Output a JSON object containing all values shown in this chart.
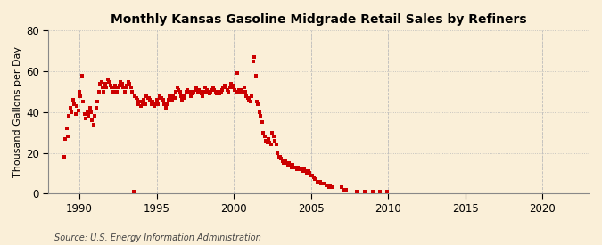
{
  "title": "Monthly Kansas Gasoline Midgrade Retail Sales by Refiners",
  "ylabel": "Thousand Gallons per Day",
  "source": "Source: U.S. Energy Information Administration",
  "background_color": "#faefd8",
  "dot_color": "#cc0000",
  "xlim": [
    1988.0,
    2023.0
  ],
  "ylim": [
    0,
    80
  ],
  "yticks": [
    0,
    20,
    40,
    60,
    80
  ],
  "xticks": [
    1990,
    1995,
    2000,
    2005,
    2010,
    2015,
    2020
  ],
  "data": [
    [
      1989.0,
      18
    ],
    [
      1989.08,
      27
    ],
    [
      1989.17,
      32
    ],
    [
      1989.25,
      28
    ],
    [
      1989.33,
      38
    ],
    [
      1989.42,
      42
    ],
    [
      1989.5,
      40
    ],
    [
      1989.58,
      46
    ],
    [
      1989.67,
      44
    ],
    [
      1989.75,
      39
    ],
    [
      1989.83,
      43
    ],
    [
      1989.92,
      41
    ],
    [
      1990.0,
      50
    ],
    [
      1990.08,
      48
    ],
    [
      1990.17,
      58
    ],
    [
      1990.25,
      45
    ],
    [
      1990.33,
      39
    ],
    [
      1990.42,
      37
    ],
    [
      1990.5,
      40
    ],
    [
      1990.58,
      38
    ],
    [
      1990.67,
      42
    ],
    [
      1990.75,
      40
    ],
    [
      1990.83,
      36
    ],
    [
      1990.92,
      34
    ],
    [
      1991.0,
      38
    ],
    [
      1991.08,
      42
    ],
    [
      1991.17,
      45
    ],
    [
      1991.25,
      50
    ],
    [
      1991.33,
      54
    ],
    [
      1991.42,
      55
    ],
    [
      1991.5,
      52
    ],
    [
      1991.58,
      50
    ],
    [
      1991.67,
      54
    ],
    [
      1991.75,
      52
    ],
    [
      1991.83,
      56
    ],
    [
      1991.92,
      55
    ],
    [
      1992.0,
      53
    ],
    [
      1992.08,
      52
    ],
    [
      1992.17,
      50
    ],
    [
      1992.25,
      52
    ],
    [
      1992.33,
      53
    ],
    [
      1992.42,
      50
    ],
    [
      1992.5,
      52
    ],
    [
      1992.58,
      53
    ],
    [
      1992.67,
      55
    ],
    [
      1992.75,
      54
    ],
    [
      1992.83,
      52
    ],
    [
      1992.92,
      50
    ],
    [
      1993.0,
      52
    ],
    [
      1993.08,
      53
    ],
    [
      1993.17,
      55
    ],
    [
      1993.25,
      54
    ],
    [
      1993.33,
      52
    ],
    [
      1993.42,
      50
    ],
    [
      1993.5,
      1
    ],
    [
      1993.58,
      48
    ],
    [
      1993.67,
      47
    ],
    [
      1993.75,
      46
    ],
    [
      1993.83,
      44
    ],
    [
      1993.92,
      45
    ],
    [
      1994.0,
      43
    ],
    [
      1994.08,
      44
    ],
    [
      1994.17,
      46
    ],
    [
      1994.25,
      44
    ],
    [
      1994.33,
      48
    ],
    [
      1994.42,
      47
    ],
    [
      1994.5,
      47
    ],
    [
      1994.58,
      46
    ],
    [
      1994.67,
      44
    ],
    [
      1994.75,
      45
    ],
    [
      1994.83,
      43
    ],
    [
      1994.92,
      44
    ],
    [
      1995.0,
      46
    ],
    [
      1995.08,
      44
    ],
    [
      1995.17,
      48
    ],
    [
      1995.25,
      47
    ],
    [
      1995.33,
      47
    ],
    [
      1995.42,
      46
    ],
    [
      1995.5,
      44
    ],
    [
      1995.58,
      42
    ],
    [
      1995.67,
      44
    ],
    [
      1995.75,
      46
    ],
    [
      1995.83,
      48
    ],
    [
      1995.92,
      47
    ],
    [
      1996.0,
      46
    ],
    [
      1996.08,
      48
    ],
    [
      1996.17,
      47
    ],
    [
      1996.25,
      50
    ],
    [
      1996.33,
      52
    ],
    [
      1996.42,
      51
    ],
    [
      1996.5,
      50
    ],
    [
      1996.58,
      48
    ],
    [
      1996.67,
      46
    ],
    [
      1996.75,
      47
    ],
    [
      1996.83,
      48
    ],
    [
      1996.92,
      50
    ],
    [
      1997.0,
      51
    ],
    [
      1997.08,
      50
    ],
    [
      1997.17,
      50
    ],
    [
      1997.25,
      48
    ],
    [
      1997.33,
      49
    ],
    [
      1997.42,
      50
    ],
    [
      1997.5,
      51
    ],
    [
      1997.58,
      52
    ],
    [
      1997.67,
      50
    ],
    [
      1997.75,
      51
    ],
    [
      1997.83,
      50
    ],
    [
      1997.92,
      49
    ],
    [
      1998.0,
      48
    ],
    [
      1998.08,
      50
    ],
    [
      1998.17,
      52
    ],
    [
      1998.25,
      51
    ],
    [
      1998.33,
      50
    ],
    [
      1998.42,
      49
    ],
    [
      1998.5,
      50
    ],
    [
      1998.58,
      51
    ],
    [
      1998.67,
      52
    ],
    [
      1998.75,
      51
    ],
    [
      1998.83,
      50
    ],
    [
      1998.92,
      49
    ],
    [
      1999.0,
      50
    ],
    [
      1999.08,
      49
    ],
    [
      1999.17,
      50
    ],
    [
      1999.25,
      51
    ],
    [
      1999.33,
      52
    ],
    [
      1999.42,
      53
    ],
    [
      1999.5,
      52
    ],
    [
      1999.58,
      51
    ],
    [
      1999.67,
      50
    ],
    [
      1999.75,
      52
    ],
    [
      1999.83,
      54
    ],
    [
      1999.92,
      53
    ],
    [
      2000.0,
      52
    ],
    [
      2000.08,
      51
    ],
    [
      2000.17,
      50
    ],
    [
      2000.25,
      59
    ],
    [
      2000.33,
      51
    ],
    [
      2000.42,
      50
    ],
    [
      2000.5,
      51
    ],
    [
      2000.58,
      50
    ],
    [
      2000.67,
      52
    ],
    [
      2000.75,
      50
    ],
    [
      2000.83,
      48
    ],
    [
      2000.92,
      47
    ],
    [
      2001.0,
      46
    ],
    [
      2001.08,
      45
    ],
    [
      2001.17,
      48
    ],
    [
      2001.25,
      65
    ],
    [
      2001.33,
      67
    ],
    [
      2001.42,
      58
    ],
    [
      2001.5,
      45
    ],
    [
      2001.58,
      44
    ],
    [
      2001.67,
      40
    ],
    [
      2001.75,
      38
    ],
    [
      2001.83,
      35
    ],
    [
      2001.92,
      30
    ],
    [
      2002.0,
      28
    ],
    [
      2002.08,
      26
    ],
    [
      2002.17,
      25
    ],
    [
      2002.25,
      27
    ],
    [
      2002.33,
      25
    ],
    [
      2002.42,
      24
    ],
    [
      2002.5,
      30
    ],
    [
      2002.58,
      28
    ],
    [
      2002.67,
      26
    ],
    [
      2002.75,
      24
    ],
    [
      2002.83,
      20
    ],
    [
      2002.92,
      18
    ],
    [
      2003.0,
      18
    ],
    [
      2003.08,
      17
    ],
    [
      2003.17,
      16
    ],
    [
      2003.25,
      15
    ],
    [
      2003.33,
      16
    ],
    [
      2003.42,
      15
    ],
    [
      2003.5,
      14
    ],
    [
      2003.58,
      15
    ],
    [
      2003.67,
      14
    ],
    [
      2003.75,
      13
    ],
    [
      2003.83,
      14
    ],
    [
      2003.92,
      13
    ],
    [
      2004.0,
      13
    ],
    [
      2004.08,
      12
    ],
    [
      2004.17,
      13
    ],
    [
      2004.25,
      12
    ],
    [
      2004.33,
      12
    ],
    [
      2004.42,
      11
    ],
    [
      2004.5,
      11
    ],
    [
      2004.58,
      12
    ],
    [
      2004.67,
      11
    ],
    [
      2004.75,
      10
    ],
    [
      2004.83,
      11
    ],
    [
      2004.92,
      10
    ],
    [
      2005.0,
      9
    ],
    [
      2005.08,
      9
    ],
    [
      2005.17,
      8
    ],
    [
      2005.25,
      7
    ],
    [
      2005.33,
      7
    ],
    [
      2005.42,
      6
    ],
    [
      2005.5,
      6
    ],
    [
      2005.58,
      6
    ],
    [
      2005.67,
      5
    ],
    [
      2005.75,
      5
    ],
    [
      2005.83,
      5
    ],
    [
      2005.92,
      5
    ],
    [
      2006.0,
      4
    ],
    [
      2006.08,
      4
    ],
    [
      2006.17,
      3
    ],
    [
      2006.25,
      4
    ],
    [
      2006.33,
      3
    ],
    [
      2007.0,
      3
    ],
    [
      2007.08,
      2
    ],
    [
      2007.17,
      2
    ],
    [
      2007.25,
      2
    ],
    [
      2008.0,
      1
    ],
    [
      2008.5,
      1
    ],
    [
      2009.0,
      1
    ],
    [
      2009.5,
      1
    ],
    [
      2009.92,
      1
    ]
  ]
}
